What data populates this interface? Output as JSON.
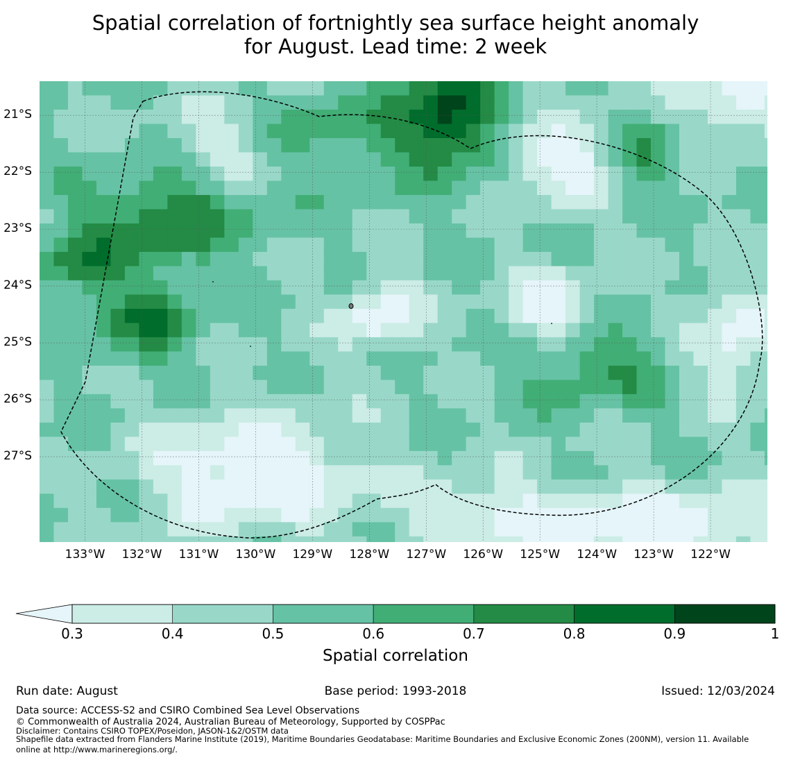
{
  "title_line1": "Spatial correlation of fortnightly sea surface height anomaly",
  "title_line2": "for August. Lead time: 2 week",
  "map": {
    "lon_range": [
      -133.8,
      -121.0
    ],
    "lat_range": [
      -28.5,
      -20.4
    ],
    "lat_labels": [
      "21°S",
      "22°S",
      "23°S",
      "24°S",
      "25°S",
      "26°S",
      "27°S"
    ],
    "lat_values": [
      -21,
      -22,
      -23,
      -24,
      -25,
      -26,
      -27
    ],
    "lon_labels": [
      "133°W",
      "132°W",
      "131°W",
      "130°W",
      "129°W",
      "128°W",
      "127°W",
      "126°W",
      "125°W",
      "124°W",
      "123°W",
      "122°W"
    ],
    "lon_values": [
      -133,
      -132,
      -131,
      -130,
      -129,
      -128,
      -127,
      -126,
      -125,
      -124,
      -123,
      -122
    ],
    "grid_lines": true,
    "eez_boundary": "dashed black line (Pitcairn Islands EEZ)"
  },
  "colorbar": {
    "ticks": [
      "0.3",
      "0.4",
      "0.5",
      "0.6",
      "0.7",
      "0.8",
      "0.9",
      "1"
    ],
    "colors": [
      "#ccece6",
      "#99d8c9",
      "#66c2a4",
      "#41ae76",
      "#238b45",
      "#006d2c",
      "#00441b"
    ],
    "under_color": "#e5f5f9",
    "label": "Spatial correlation"
  },
  "footer": {
    "run_date": "Run date: August",
    "base_period": "Base period: 1993-2018",
    "issued": "Issued: 12/03/2024",
    "data_source": "Data source: ACCESS-S2 and CSIRO Combined Sea Level Observations",
    "copyright": "© Commonwealth of Australia 2024, Australian Bureau of Meteorology, Supported by COSPPac",
    "disclaimer": "Disclaimer: Contains CSIRO TOPEX/Poseidon, JASON-1&2/OSTM data",
    "shapefile_line1": "Shapefile data extracted from Flanders Marine Institute (2019), Maritime Boundaries Geodatabase: Maritime Boundaries and Exclusive Economic Zones (200NM), version 11. Available",
    "shapefile_line2": "online at http://www.marineregions.org/."
  }
}
